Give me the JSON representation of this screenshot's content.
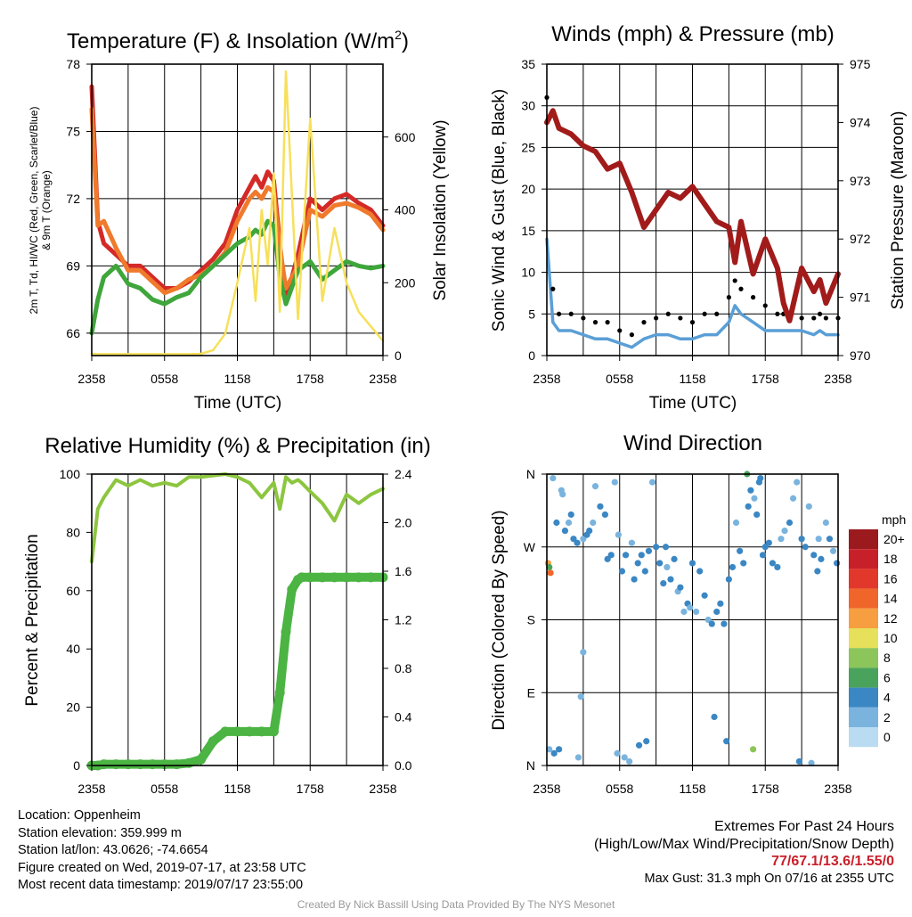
{
  "panels": {
    "temperature": {
      "title": "Temperature (F) & Insolation (W/m2)",
      "title_main": "Temperature (F) & Insolation (W/m",
      "title_sup": "2",
      "title_close": ")",
      "left_label_line1": "2m T, Td, HI/WC (Red, Green, Scarlet/Blue)",
      "left_label_line2": "& 9m T (Orange)",
      "right_label": "Solar Insolation (Yellow)",
      "xlabel": "Time (UTC)"
    },
    "winds": {
      "title": "Winds (mph) & Pressure (mb)",
      "left_label": "Sonic Wind & Gust (Blue, Black)",
      "right_label": "Station Pressure (Maroon)",
      "xlabel": "Time (UTC)"
    },
    "humidity": {
      "title": "Relative Humidity (%) & Precipitation (in)",
      "left_label": "Percent & Precipitation"
    },
    "direction": {
      "title": "Wind Direction",
      "left_label": "Direction (Colored By Speed)",
      "legend_title": "mph",
      "legend_labels": [
        "20+",
        "18",
        "16",
        "14",
        "12",
        "10",
        "8",
        "6",
        "4",
        "2",
        "0"
      ],
      "legend_colors": [
        "#9b1a1d",
        "#c8202a",
        "#e2382b",
        "#f0662a",
        "#f79e40",
        "#e6e05a",
        "#8cc55a",
        "#4aa35c",
        "#3a87c4",
        "#7ab4de",
        "#b9dcf3"
      ]
    }
  },
  "info_left": [
    "Location: Oppenheim",
    "Station elevation: 359.999 m",
    "Station lat/lon: 43.0626; -74.6654",
    "Figure created on Wed, 2019-07-17, at 23:58 UTC",
    "Most recent data timestamp: 2019/07/17 23:55:00"
  ],
  "info_right": {
    "title": "Extremes For Past 24 Hours",
    "subtitle": "(High/Low/Max Wind/Precipitation/Snow Depth)",
    "values": "77/67.1/13.6/1.55/0",
    "max_gust": "Max Gust: 31.3 mph On 07/16 at 2355 UTC"
  },
  "credit": "Created By Nick Bassill Using Data Provided By The NYS Mesonet",
  "colors": {
    "temp_red": "#d42a27",
    "temp_orange": "#f07a2b",
    "temp_scarlet": "#c81f1c",
    "dewpoint_green": "#3ea63a",
    "insolation_yellow": "#f7e05a",
    "wind_blue": "#5a9fd6",
    "gust_black": "#000000",
    "pressure_maroon": "#a11b1b",
    "rh_green": "#8cc63f",
    "precip_green": "#4bb443",
    "credit_gray": "#9a9a9a",
    "extremes_red": "#c8202a"
  },
  "chart_data": [
    {
      "type": "line",
      "panel": "temperature",
      "x_ticks": [
        "2358",
        "0558",
        "1158",
        "1758",
        "2358"
      ],
      "x": [
        0,
        0.5,
        1,
        2,
        3,
        4,
        5,
        6,
        7,
        8,
        9,
        10,
        11,
        12,
        13,
        13.5,
        14,
        14.5,
        15,
        15.5,
        16,
        17,
        18,
        19,
        20,
        21,
        22,
        23,
        24
      ],
      "ylim_left": [
        65,
        78
      ],
      "yticks_left": [
        "66",
        "69",
        "72",
        "75",
        "78"
      ],
      "ylim_right": [
        0,
        800
      ],
      "yticks_right": [
        "0",
        "200",
        "400",
        "600"
      ],
      "series": [
        {
          "name": "2m T (Red)",
          "axis": "left",
          "color": "#d42a27",
          "values": [
            77,
            71,
            70,
            69.5,
            69,
            69,
            68.5,
            68,
            68,
            68.3,
            68.8,
            69.3,
            70,
            71.5,
            72.5,
            73,
            72.5,
            73.2,
            72.8,
            70,
            67.5,
            69.5,
            72,
            71.5,
            72,
            72.2,
            71.8,
            71.5,
            70.8
          ]
        },
        {
          "name": "9m T (Orange)",
          "axis": "left",
          "color": "#f07a2b",
          "values": [
            76,
            70.8,
            71,
            69.8,
            68.8,
            68.8,
            68.3,
            67.8,
            68,
            68.4,
            68.6,
            69,
            69.6,
            71,
            72,
            72.3,
            72,
            72.5,
            72.3,
            69.8,
            68,
            69,
            71.5,
            71.2,
            71.7,
            71.8,
            71.6,
            71.3,
            70.6
          ]
        },
        {
          "name": "Td (Green)",
          "axis": "left",
          "color": "#3ea63a",
          "values": [
            66,
            67.5,
            68.5,
            69,
            68.2,
            68,
            67.5,
            67.3,
            67.6,
            67.8,
            68.5,
            69,
            69.5,
            70,
            70.3,
            70.6,
            70.4,
            71,
            70.8,
            68.5,
            67.3,
            68.8,
            69.2,
            68.4,
            68.8,
            69.2,
            69,
            68.9,
            69
          ]
        },
        {
          "name": "Solar Insolation (Yellow)",
          "axis": "right",
          "color": "#f7e05a",
          "values": [
            5,
            4,
            4,
            4,
            4,
            4,
            4,
            4,
            4,
            4,
            5,
            15,
            60,
            200,
            350,
            150,
            400,
            250,
            500,
            120,
            780,
            100,
            650,
            150,
            350,
            200,
            120,
            80,
            40
          ]
        }
      ]
    },
    {
      "type": "line",
      "panel": "winds",
      "x_ticks": [
        "2358",
        "0558",
        "1158",
        "1758",
        "2358"
      ],
      "x": [
        0,
        0.5,
        1,
        2,
        3,
        4,
        5,
        6,
        7,
        8,
        9,
        10,
        11,
        12,
        13,
        14,
        15,
        15.5,
        16,
        17,
        18,
        19,
        19.5,
        20,
        21,
        22,
        22.5,
        23,
        24
      ],
      "ylim_left": [
        0,
        35
      ],
      "yticks_left": [
        "0",
        "5",
        "10",
        "15",
        "20",
        "25",
        "30",
        "35"
      ],
      "ylim_right": [
        970,
        975
      ],
      "yticks_right": [
        "970",
        "971",
        "972",
        "973",
        "974",
        "975"
      ],
      "series": [
        {
          "name": "Sonic Wind (Blue)",
          "axis": "left",
          "color": "#5a9fd6",
          "values": [
            14,
            4,
            3,
            3,
            2.5,
            2,
            2,
            1.5,
            1,
            2,
            2.5,
            2.5,
            2,
            2,
            2.5,
            2.5,
            4,
            6,
            5,
            4,
            3,
            3,
            3,
            3,
            3,
            2.5,
            3,
            2.5,
            2.5
          ]
        },
        {
          "name": "Gust (Black)",
          "axis": "left",
          "color": "#000000",
          "values": [
            31,
            8,
            5,
            5,
            4.5,
            4,
            4,
            3,
            2.5,
            4,
            4.5,
            5,
            4.5,
            4,
            5,
            5,
            7,
            9,
            8,
            7,
            6,
            5,
            5,
            5,
            4.5,
            4.5,
            5,
            4.5,
            4.5
          ]
        },
        {
          "name": "Station Pressure (Maroon)",
          "axis": "right",
          "color": "#a11b1b",
          "values": [
            974,
            974.2,
            973.9,
            973.8,
            973.6,
            973.5,
            973.2,
            973.3,
            972.8,
            972.2,
            972.5,
            972.8,
            972.7,
            972.9,
            972.6,
            972.3,
            972.2,
            971.6,
            972.3,
            971.4,
            972,
            971.5,
            970.9,
            970.6,
            971.5,
            971.1,
            971.3,
            970.9,
            971.4
          ]
        }
      ]
    },
    {
      "type": "line",
      "panel": "humidity",
      "x_ticks": [
        "2358",
        "0558",
        "1158",
        "1758",
        "2358"
      ],
      "x": [
        0,
        0.5,
        1,
        2,
        3,
        4,
        5,
        6,
        7,
        8,
        9,
        10,
        11,
        12,
        13,
        14,
        15,
        15.5,
        16,
        16.5,
        17,
        17.3,
        18,
        19,
        20,
        21,
        22,
        23,
        24
      ],
      "ylim_left": [
        0,
        100
      ],
      "yticks_left": [
        "0",
        "20",
        "40",
        "60",
        "80",
        "100"
      ],
      "ylim_right": [
        0,
        2.4
      ],
      "yticks_right": [
        "0.0",
        "0.4",
        "0.8",
        "1.2",
        "1.6",
        "2.0",
        "2.4"
      ],
      "series": [
        {
          "name": "Relative Humidity",
          "axis": "left",
          "color": "#8cc63f",
          "values": [
            70,
            88,
            92,
            98,
            96,
            98,
            96,
            97,
            96,
            99,
            99,
            99.5,
            100,
            99,
            97,
            92,
            97,
            88,
            99,
            97,
            98,
            97,
            94,
            90,
            84,
            93,
            90,
            93,
            95
          ]
        },
        {
          "name": "Precipitation",
          "axis": "right",
          "color": "#4bb443",
          "values": [
            0,
            0,
            0.01,
            0.01,
            0.01,
            0.01,
            0.01,
            0.01,
            0.01,
            0.02,
            0.05,
            0.2,
            0.28,
            0.28,
            0.28,
            0.28,
            0.28,
            0.6,
            1.1,
            1.45,
            1.53,
            1.55,
            1.55,
            1.55,
            1.55,
            1.55,
            1.55,
            1.55,
            1.55
          ]
        }
      ]
    },
    {
      "type": "scatter",
      "panel": "direction",
      "x_ticks": [
        "2358",
        "0558",
        "1158",
        "1758",
        "2358"
      ],
      "yticks": [
        "N",
        "E",
        "S",
        "W",
        "N"
      ],
      "ylim": [
        0,
        360
      ],
      "color_by": "speed (mph)",
      "points_x": [
        0.1,
        0.2,
        0.3,
        0.5,
        0.8,
        1.0,
        1.2,
        1.5,
        1.8,
        2.0,
        2.2,
        2.5,
        2.8,
        3.0,
        3.3,
        3.5,
        3.8,
        4.0,
        4.4,
        4.8,
        5.0,
        5.3,
        5.6,
        5.9,
        6.2,
        6.5,
        6.8,
        7.0,
        7.2,
        7.5,
        7.8,
        8.1,
        8.4,
        8.7,
        9.0,
        9.3,
        9.6,
        9.9,
        10.2,
        10.5,
        10.8,
        11.0,
        11.3,
        11.6,
        12.0,
        12.3,
        12.6,
        13.0,
        13.3,
        13.6,
        14.0,
        14.3,
        14.6,
        15.0,
        15.3,
        15.6,
        15.9,
        16.2,
        16.5,
        16.8,
        17.1,
        17.3,
        17.5,
        17.8,
        18.0,
        18.3,
        18.6,
        19.0,
        19.3,
        19.6,
        20.0,
        20.3,
        20.6,
        21.0,
        21.3,
        21.6,
        22.0,
        22.3,
        22.6,
        23.0,
        23.3,
        23.6,
        23.9,
        0.2,
        0.6,
        2.6,
        5.8,
        6.4,
        7.6,
        8.2,
        13.8,
        14.8,
        16.6,
        17.0,
        17.6,
        20.8,
        21.8,
        22.4,
        1.3,
        3.0,
        9.8,
        11.8
      ],
      "points_y": [
        250,
        245,
        238,
        355,
        300,
        20,
        340,
        290,
        300,
        310,
        280,
        275,
        85,
        280,
        285,
        290,
        300,
        345,
        320,
        310,
        255,
        260,
        350,
        285,
        240,
        260,
        5,
        275,
        230,
        250,
        260,
        240,
        265,
        350,
        270,
        250,
        225,
        245,
        230,
        255,
        215,
        220,
        190,
        200,
        250,
        190,
        240,
        210,
        180,
        175,
        190,
        200,
        175,
        230,
        245,
        300,
        265,
        250,
        360,
        340,
        330,
        310,
        350,
        260,
        270,
        275,
        250,
        245,
        280,
        290,
        300,
        330,
        350,
        280,
        270,
        320,
        260,
        240,
        255,
        300,
        280,
        265,
        250,
        20,
        15,
        10,
        15,
        10,
        25,
        30,
        60,
        30,
        320,
        20,
        355,
        5,
        3,
        280,
        335,
        140,
        270,
        195
      ],
      "points_speed": [
        12,
        6,
        14,
        1,
        3,
        3,
        2,
        4,
        2,
        3,
        4,
        4,
        1,
        2,
        3,
        4,
        2,
        1,
        4,
        3,
        4,
        4,
        1,
        2,
        3,
        4,
        1,
        2,
        3,
        4,
        4,
        3,
        3,
        1,
        4,
        3,
        4,
        2,
        3,
        3,
        2,
        3,
        2,
        3,
        3,
        2,
        4,
        3,
        2,
        3,
        4,
        3,
        3,
        4,
        4,
        2,
        4,
        4,
        6,
        3,
        2,
        3,
        4,
        4,
        3,
        3,
        4,
        3,
        2,
        2,
        3,
        2,
        1,
        3,
        3,
        2,
        4,
        3,
        3,
        2,
        3,
        2,
        4,
        2,
        3,
        1,
        2,
        2,
        3,
        3,
        4,
        3,
        4,
        7,
        4,
        4,
        1,
        2,
        2,
        1,
        4,
        2
      ]
    }
  ]
}
